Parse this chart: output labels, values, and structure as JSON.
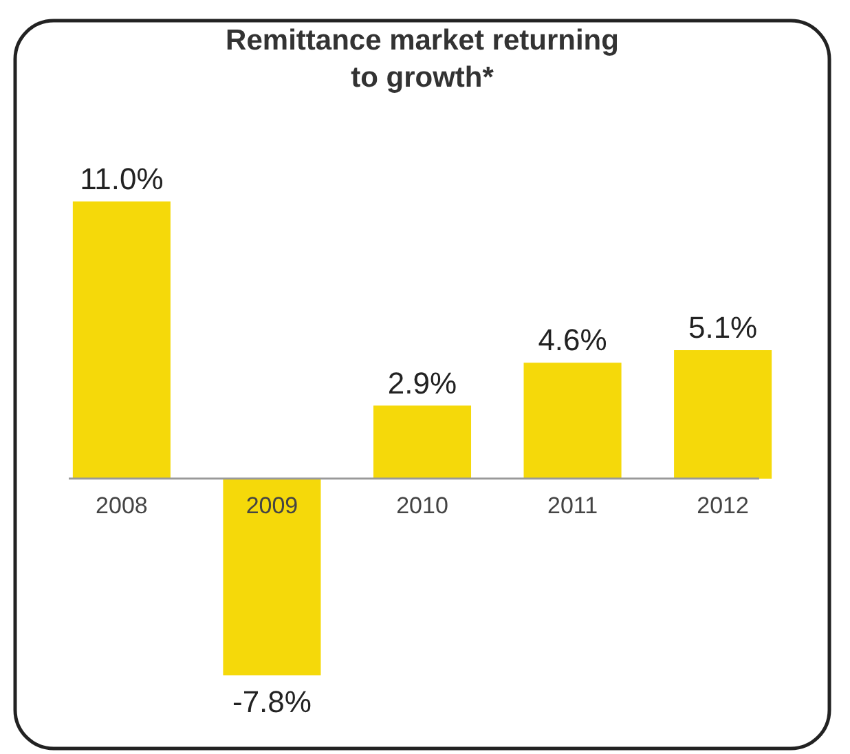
{
  "chart_data": {
    "type": "bar",
    "title": [
      "Remittance market returning",
      "to growth*"
    ],
    "categories": [
      "2008",
      "2009",
      "2010",
      "2011",
      "2012"
    ],
    "values": [
      11.0,
      -7.8,
      2.9,
      4.6,
      5.1
    ],
    "value_labels": [
      "11.0%",
      "-7.8%",
      "2.9%",
      "4.6%",
      "5.1%"
    ],
    "color": "#f5d90a"
  }
}
